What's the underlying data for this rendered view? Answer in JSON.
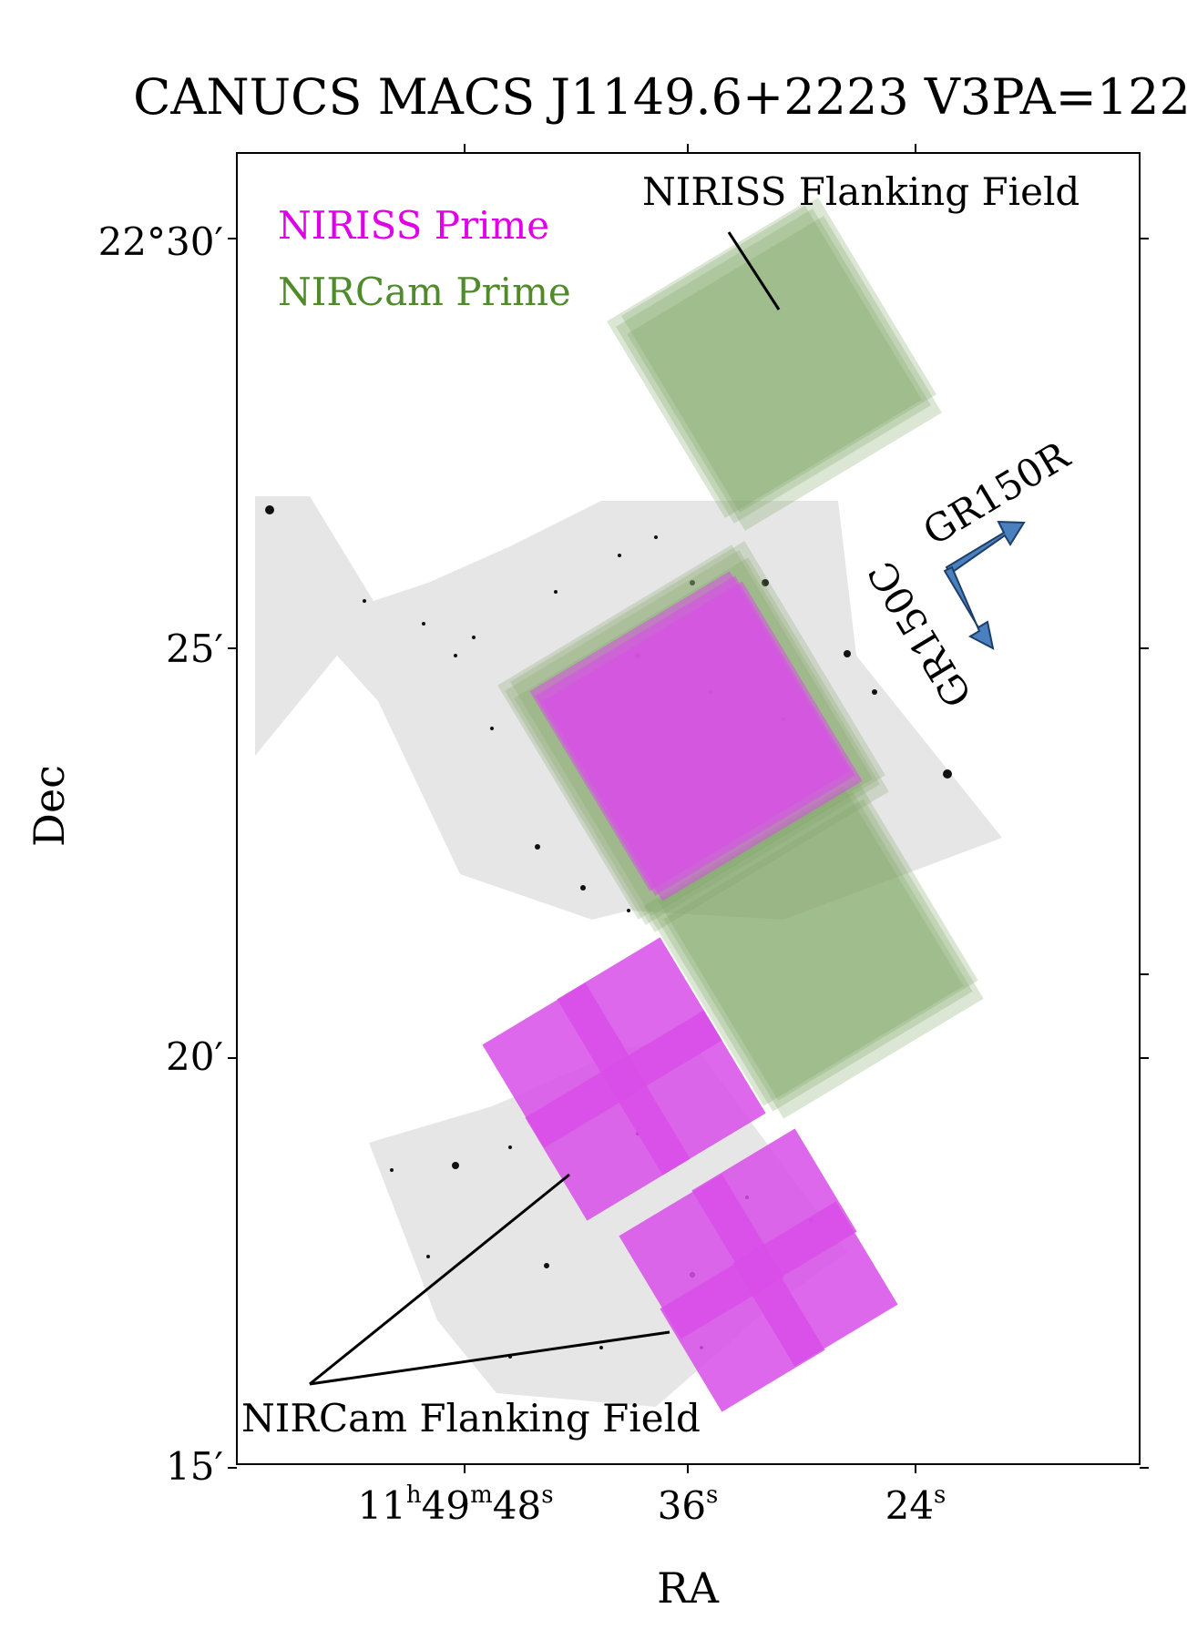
{
  "chart_data": {
    "type": "sky_footprint_map",
    "title": "CANUCS MACS J1149.6+2223 V3PA=122°",
    "xlabel": "RA",
    "ylabel": "Dec",
    "x_ticks": [
      {
        "h": "11",
        "m": "49",
        "s": "48",
        "label_main": "11",
        "sup_h": "h",
        "label_min": "49",
        "sup_m": "m",
        "label_sec": "48",
        "sup_s": "s"
      },
      {
        "s": "36",
        "label_sec": "36",
        "sup_s": "s"
      },
      {
        "s": "24",
        "label_sec": "24",
        "sup_s": "s"
      }
    ],
    "y_ticks": [
      {
        "value_arcmin": 30,
        "label": "22°30′"
      },
      {
        "value_arcmin": 25,
        "label": "25′"
      },
      {
        "value_arcmin": 20,
        "label": "20′"
      },
      {
        "value_arcmin": 15,
        "label": "15′"
      }
    ],
    "legend": [
      {
        "label": "NIRISS Prime",
        "color": "#e000e8"
      },
      {
        "label": "NIRCam Prime",
        "color": "#4f8a2b"
      }
    ],
    "annotations": {
      "niriss_flanking": "NIRISS Flanking Field",
      "nircam_flanking": "NIRCam Flanking Field",
      "grism_r": "GR150R",
      "grism_c": "GR150C"
    },
    "colors": {
      "niriss": "#d84ee8",
      "nircam": "#7fa564",
      "arrow": "#4a7fc0",
      "sky_bg": "#e6e6e6"
    }
  }
}
